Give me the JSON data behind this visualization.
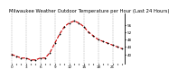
{
  "title": "Milwaukee Weather Outdoor Temperature per Hour (Last 24 Hours)",
  "hours": [
    0,
    1,
    2,
    3,
    4,
    5,
    6,
    7,
    8,
    9,
    10,
    11,
    12,
    13,
    14,
    15,
    16,
    17,
    18,
    19,
    20,
    21,
    22,
    23
  ],
  "temps": [
    40,
    39,
    38,
    38,
    37,
    37,
    38,
    38,
    41,
    46,
    51,
    55,
    57,
    58,
    57,
    55,
    52,
    50,
    48,
    47,
    46,
    45,
    44,
    43
  ],
  "line_color": "#cc0000",
  "marker_color": "#000000",
  "bg_color": "#ffffff",
  "grid_color": "#888888",
  "title_color": "#000000",
  "ylim": [
    35,
    62
  ],
  "yticks": [
    40,
    44,
    48,
    52,
    56
  ],
  "ytick_labels": [
    "40",
    "44",
    "48",
    "52",
    "56"
  ],
  "title_fontsize": 3.8,
  "tick_fontsize": 3.0,
  "linewidth": 0.8,
  "markersize": 2.0
}
